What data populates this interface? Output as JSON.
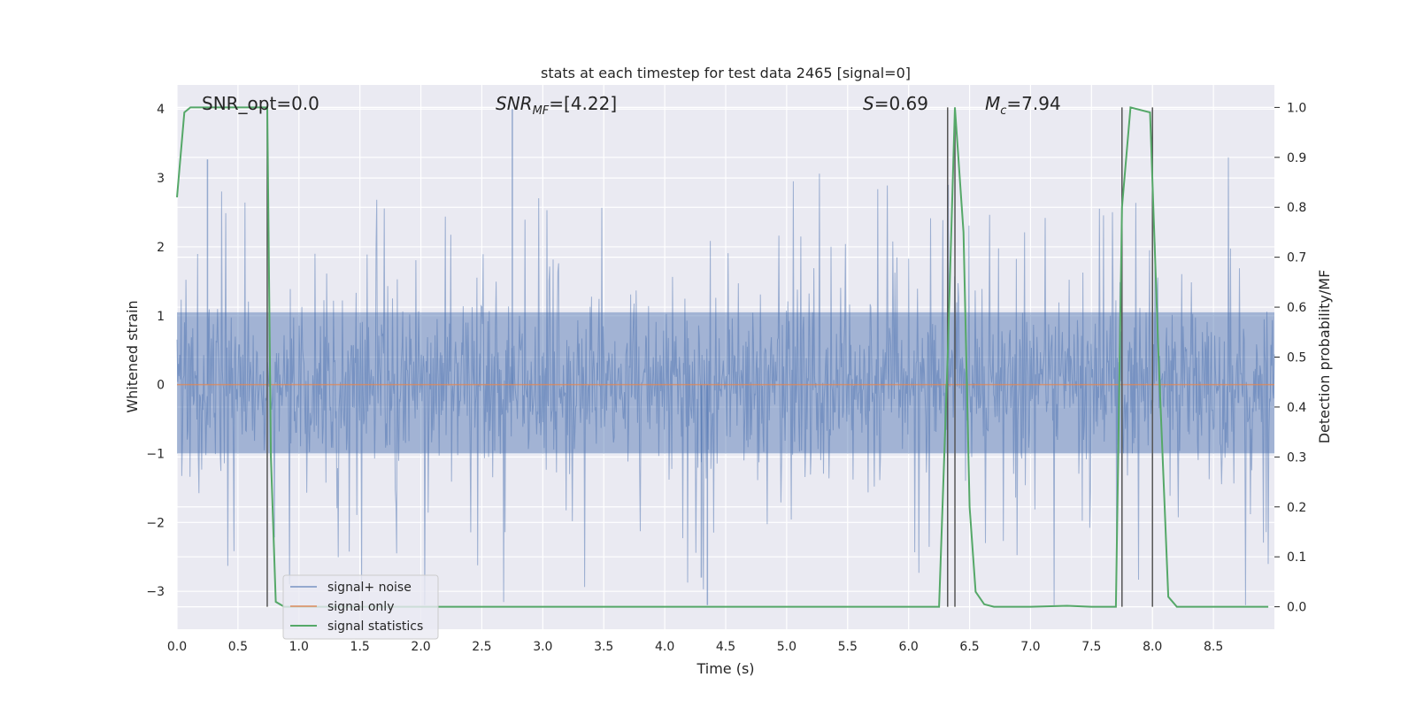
{
  "chart_data": {
    "type": "line",
    "title": "stats at each timestep for test data 2465 [signal=0]",
    "xlabel": "Time (s)",
    "ylabel_left": "Whitened strain",
    "ylabel_right": "Detection probability/MF",
    "xlim": [
      0,
      9.0
    ],
    "ylim_left": [
      -3.55,
      4.35
    ],
    "ylim_right": [
      -0.045,
      1.045
    ],
    "x_ticks": [
      "0.0",
      "0.5",
      "1.0",
      "1.5",
      "2.0",
      "2.5",
      "3.0",
      "3.5",
      "4.0",
      "4.5",
      "5.0",
      "5.5",
      "6.0",
      "6.5",
      "7.0",
      "7.5",
      "8.0",
      "8.5"
    ],
    "y_ticks_left": [
      "−3",
      "−2",
      "−1",
      "0",
      "1",
      "2",
      "3",
      "4"
    ],
    "y_ticks_right": [
      "0.0",
      "0.1",
      "0.2",
      "0.3",
      "0.4",
      "0.5",
      "0.6",
      "0.7",
      "0.8",
      "0.9",
      "1.0"
    ],
    "grid": true,
    "legend_position": "lower-left",
    "colors": {
      "noise": "#4c72b0",
      "signal": "#dd8452",
      "stats": "#55a868",
      "vline": "#555555",
      "plot_bg": "#eaeaf2",
      "grid": "#ffffff"
    },
    "series": [
      {
        "name": "signal+ noise",
        "description": "whitened noisy strain, roughly within ±1.2 with spikes to ~3.3 and ~-3.2",
        "amplitude_core": 1.2,
        "max": 4.0,
        "min": -3.2
      },
      {
        "name": "signal only",
        "x": [
          0,
          9.0
        ],
        "y": [
          0,
          0
        ]
      },
      {
        "name": "signal statistics",
        "axis": "right",
        "x": [
          0.0,
          0.06,
          0.11,
          0.3,
          0.5,
          0.7,
          0.74,
          0.77,
          0.81,
          0.88,
          1.0,
          2.0,
          3.0,
          4.0,
          5.0,
          6.0,
          6.25,
          6.32,
          6.38,
          6.45,
          6.5,
          6.55,
          6.62,
          6.7,
          7.0,
          7.3,
          7.5,
          7.7,
          7.75,
          7.82,
          7.98,
          8.05,
          8.1,
          8.13,
          8.2,
          8.5,
          8.95
        ],
        "y": [
          0.82,
          0.99,
          1.0,
          1.0,
          1.0,
          1.0,
          1.0,
          0.3,
          0.01,
          0.0,
          0.0,
          0.0,
          0.0,
          0.0,
          0.0,
          0.0,
          0.0,
          0.5,
          1.0,
          0.75,
          0.2,
          0.03,
          0.005,
          0.0,
          0.0,
          0.002,
          0.0,
          0.0,
          0.8,
          1.0,
          0.99,
          0.5,
          0.2,
          0.02,
          0.0,
          0.0,
          0.0
        ]
      }
    ],
    "vlines": [
      0.74,
      6.32,
      6.38,
      7.75,
      8.0
    ],
    "annotations": [
      {
        "key": "snr_opt",
        "text": "SNR_opt=0.0"
      },
      {
        "key": "snr_mf",
        "text": "SNR_MF=[4.22]"
      },
      {
        "key": "s",
        "text": "S=0.69"
      },
      {
        "key": "mc",
        "text": "M_c=7.94"
      }
    ]
  }
}
